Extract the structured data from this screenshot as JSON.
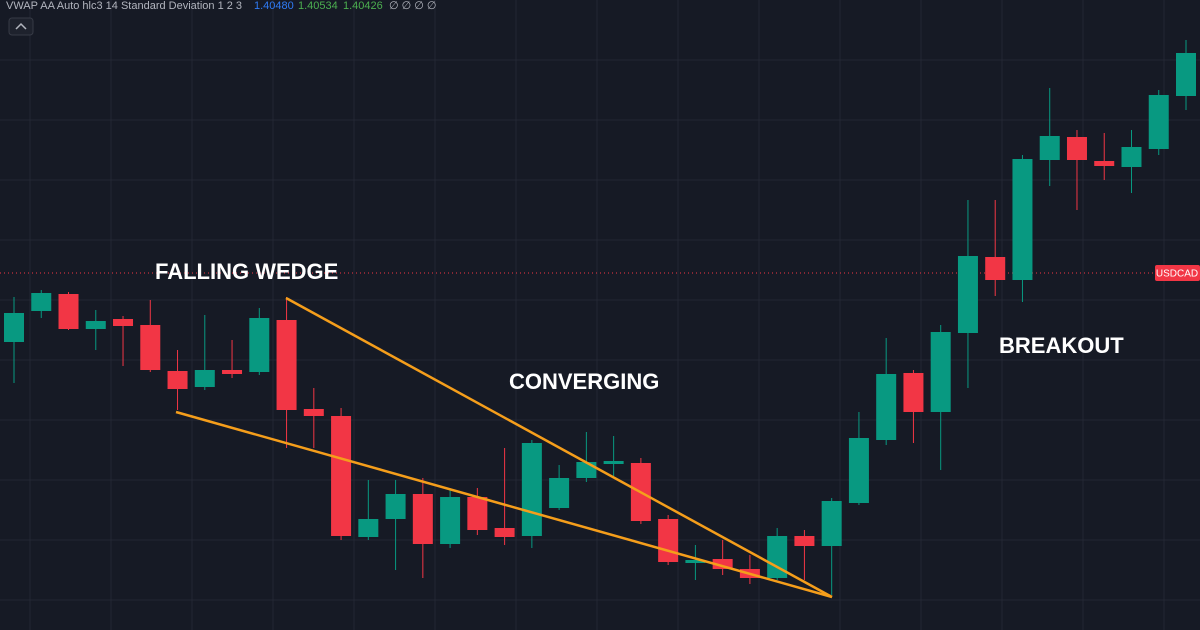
{
  "header": {
    "indicator": "VWAP AA Auto hlc3 14 Standard Deviation 1 2 3",
    "values": [
      "1.40480",
      "1.40534",
      "1.40426"
    ],
    "flags": "∅ ∅ ∅ ∅"
  },
  "chart_data": {
    "type": "candlestick",
    "symbol": "USDCAD",
    "annotations": [
      "FALLING WEDGE",
      "CONVERGING",
      "BREAKOUT"
    ],
    "up_color": "#089981",
    "down_color": "#f23645",
    "line_color": "#f59e1b",
    "ylim": [
      1.4024,
      1.415
    ],
    "price_line": 1.40954,
    "open": [
      1.40816,
      1.40878,
      1.40912,
      1.40842,
      1.40862,
      1.4085,
      1.40758,
      1.40726,
      1.4076,
      1.40756,
      1.4086,
      1.40682,
      1.40668,
      1.40426,
      1.40462,
      1.40512,
      1.40412,
      1.40506,
      1.40444,
      1.40428,
      1.40484,
      1.40544,
      1.40572,
      1.40574,
      1.40462,
      1.40374,
      1.40382,
      1.40362,
      1.40344,
      1.40428,
      1.40408,
      1.40494,
      1.4062,
      1.40754,
      1.40676,
      1.40834,
      1.40986,
      1.4094,
      1.4118,
      1.41226,
      1.41178,
      1.41166,
      1.41202,
      1.41308
    ],
    "high": [
      1.40906,
      1.4092,
      1.40916,
      1.4088,
      1.40868,
      1.409,
      1.408,
      1.4087,
      1.4082,
      1.40884,
      1.40906,
      1.40724,
      1.40684,
      1.4054,
      1.4054,
      1.40544,
      1.4052,
      1.40524,
      1.40604,
      1.4062,
      1.4057,
      1.40636,
      1.40628,
      1.40584,
      1.4047,
      1.4041,
      1.4042,
      1.4039,
      1.40444,
      1.4044,
      1.40504,
      1.40676,
      1.40824,
      1.4076,
      1.4085,
      1.411,
      1.411,
      1.4119,
      1.41324,
      1.4124,
      1.41234,
      1.4124,
      1.4132,
      1.4142
    ],
    "low": [
      1.40734,
      1.40864,
      1.4084,
      1.408,
      1.40768,
      1.40756,
      1.4068,
      1.4072,
      1.40744,
      1.4075,
      1.40604,
      1.40604,
      1.4042,
      1.4042,
      1.4036,
      1.40344,
      1.40404,
      1.4043,
      1.4041,
      1.40404,
      1.4048,
      1.40536,
      1.40548,
      1.40452,
      1.4037,
      1.4034,
      1.4035,
      1.40332,
      1.4034,
      1.4034,
      1.4031,
      1.4049,
      1.4061,
      1.40614,
      1.4056,
      1.40724,
      1.40908,
      1.40896,
      1.41128,
      1.4108,
      1.4114,
      1.41114,
      1.4119,
      1.4128
    ],
    "close": [
      1.40874,
      1.40914,
      1.40842,
      1.40858,
      1.40848,
      1.4076,
      1.40722,
      1.4076,
      1.40752,
      1.40864,
      1.4068,
      1.40668,
      1.40428,
      1.40462,
      1.40512,
      1.40412,
      1.40506,
      1.4044,
      1.40426,
      1.40614,
      1.40544,
      1.40576,
      1.40578,
      1.40458,
      1.40376,
      1.4038,
      1.40362,
      1.40344,
      1.40428,
      1.40408,
      1.40498,
      1.40624,
      1.40752,
      1.40676,
      1.40836,
      1.40988,
      1.4094,
      1.41182,
      1.41228,
      1.4118,
      1.41168,
      1.41206,
      1.4131,
      1.41394
    ]
  }
}
